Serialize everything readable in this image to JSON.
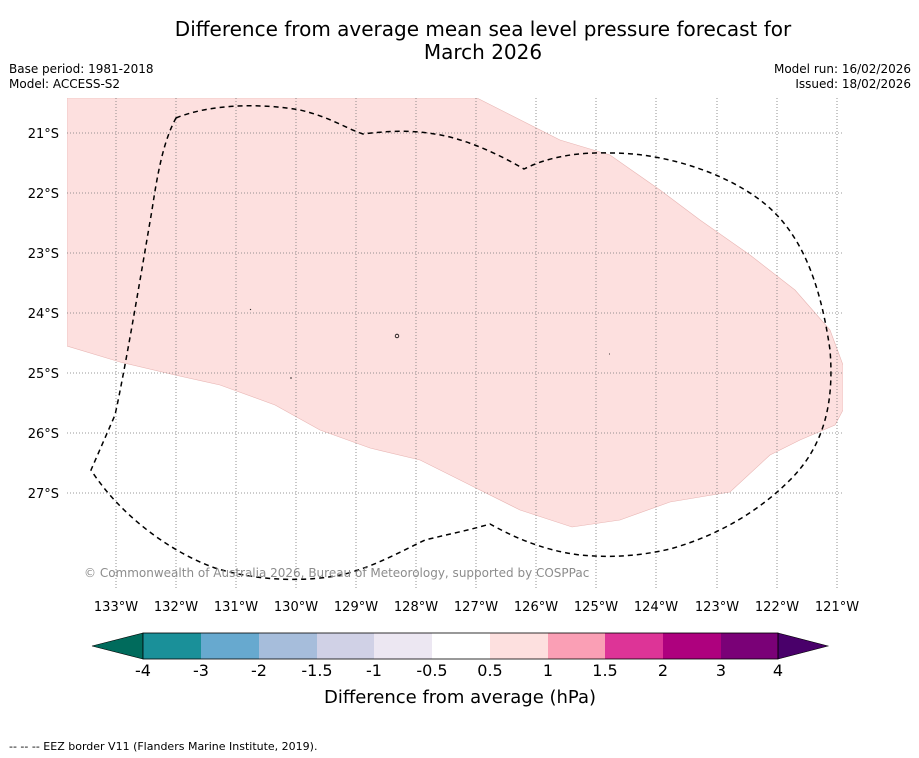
{
  "title_line1": "Difference from average mean sea level pressure forecast for",
  "title_line2": "March 2026",
  "meta_left": {
    "base_period": "Base period: 1981-2018",
    "model": "Model: ACCESS-S2"
  },
  "meta_right": {
    "model_run": "Model run: 16/02/2026",
    "issued": "Issued: 18/02/2026"
  },
  "map": {
    "lat_labels": [
      "21°S",
      "22°S",
      "23°S",
      "24°S",
      "25°S",
      "26°S",
      "27°S"
    ],
    "lon_labels": [
      "133°W",
      "132°W",
      "131°W",
      "130°W",
      "129°W",
      "128°W",
      "127°W",
      "126°W",
      "125°W",
      "124°W",
      "123°W",
      "122°W",
      "121°W"
    ],
    "anomaly_region": {
      "label": "0.5 to 1 hPa",
      "color": "#fde0df"
    },
    "copyright": "© Commonwealth of Australia 2026, Bureau of Meteorology, supported by COSPPac"
  },
  "colorbar": {
    "title": "Difference from average (hPa)",
    "tick_labels": [
      "-4",
      "-3",
      "-2",
      "-1.5",
      "-1",
      "-0.5",
      "0.5",
      "1",
      "1.5",
      "2",
      "3",
      "4"
    ],
    "colors": [
      "#006b5c",
      "#1a9099",
      "#67a9cf",
      "#a6bddb",
      "#d0d1e6",
      "#ece7f2",
      "#ffffff",
      "#fde0df",
      "#fa9fb5",
      "#dd3497",
      "#ae017e",
      "#7a0177",
      "#49006a"
    ]
  },
  "footnote": "-- -- -- EEZ border V11 (Flanders Marine Institute, 2019)."
}
